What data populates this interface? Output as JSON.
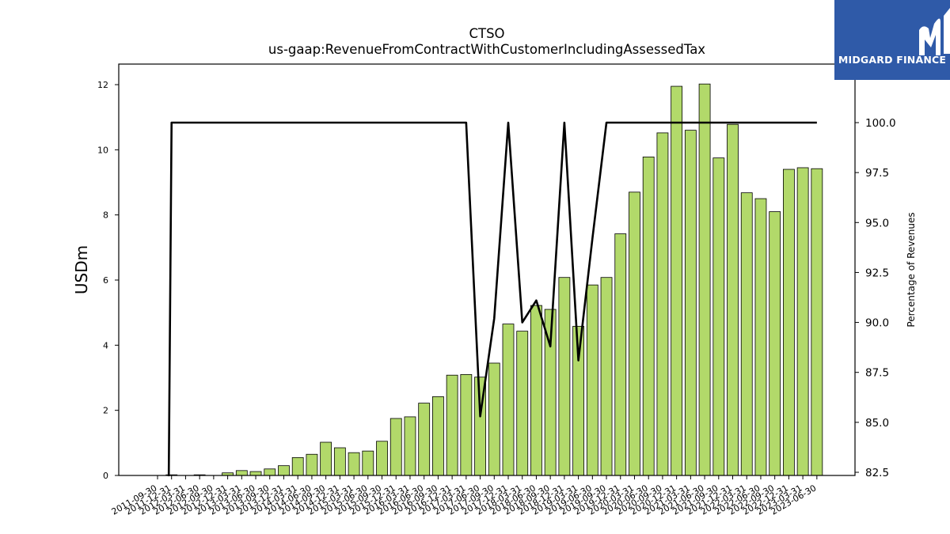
{
  "chart_data": {
    "type": "bar",
    "title": "CTSO",
    "subtitle": "us-gaap:RevenueFromContractWithCustomerIncludingAssessedTax",
    "ylabel": "USDm",
    "y2label": "Percentage of Revenues",
    "ylim": [
      0,
      12.6
    ],
    "y2lim": [
      82.3,
      103.2
    ],
    "yticks": [
      "0",
      "2",
      "4",
      "6",
      "8",
      "10",
      "12"
    ],
    "y2ticks": [
      "82.5",
      "85.0",
      "87.5",
      "90.0",
      "92.5",
      "95.0",
      "97.5",
      "100.0"
    ],
    "bar_color": "#b2d96a",
    "line_color": "#000000",
    "categories": [
      "2011-09-30",
      "2011-12-31",
      "2012-03-31",
      "2012-06-30",
      "2012-09-30",
      "2012-12-31",
      "2013-03-31",
      "2013-06-30",
      "2013-09-30",
      "2013-12-31",
      "2014-03-31",
      "2014-06-30",
      "2014-09-30",
      "2014-12-31",
      "2015-03-31",
      "2015-06-30",
      "2015-09-30",
      "2015-12-31",
      "2016-03-31",
      "2016-06-30",
      "2016-09-30",
      "2016-12-31",
      "2017-03-31",
      "2017-06-30",
      "2017-09-30",
      "2017-12-31",
      "2018-03-31",
      "2018-06-30",
      "2018-09-30",
      "2018-12-31",
      "2019-03-31",
      "2019-06-30",
      "2019-09-30",
      "2019-12-31",
      "2020-03-31",
      "2020-06-30",
      "2020-09-30",
      "2020-12-31",
      "2021-03-31",
      "2021-06-30",
      "2021-09-30",
      "2021-12-31",
      "2022-03-31",
      "2022-06-30",
      "2022-09-30",
      "2022-12-31",
      "2023-03-31",
      "2023-06-30"
    ],
    "series": [
      {
        "type": "bar",
        "values": [
          0.0,
          0.02,
          0.0,
          0.02,
          0.0,
          0.08,
          0.15,
          0.12,
          0.2,
          0.3,
          0.55,
          0.65,
          1.02,
          0.85,
          0.7,
          0.75,
          1.05,
          1.75,
          1.8,
          2.22,
          2.42,
          3.08,
          3.1,
          3.02,
          3.45,
          4.65,
          4.43,
          5.22,
          5.1,
          6.08,
          4.58,
          5.85,
          6.08,
          7.42,
          8.7,
          9.78,
          10.52,
          11.95,
          10.6,
          12.02,
          9.75,
          10.78,
          8.68,
          8.5,
          8.1,
          9.4,
          9.45,
          9.42
        ]
      },
      {
        "type": "line",
        "axis": "right",
        "values": [
          null,
          100.0,
          100.0,
          100.0,
          100.0,
          100.0,
          100.0,
          100.0,
          100.0,
          100.0,
          100.0,
          100.0,
          100.0,
          100.0,
          100.0,
          100.0,
          100.0,
          100.0,
          100.0,
          100.0,
          100.0,
          100.0,
          100.0,
          85.3,
          90.2,
          100.0,
          90.0,
          91.1,
          88.8,
          100.0,
          88.1,
          94.2,
          100.0,
          100.0,
          100.0,
          100.0,
          100.0,
          100.0,
          100.0,
          100.0,
          100.0,
          100.0,
          100.0,
          100.0,
          100.0,
          100.0,
          100.0,
          100.0
        ]
      }
    ],
    "line_start": {
      "category_index": 0.8,
      "value": 82.3
    }
  },
  "logo": {
    "text": "MIDGARD FINANCE",
    "background": "#2f5aa8"
  }
}
